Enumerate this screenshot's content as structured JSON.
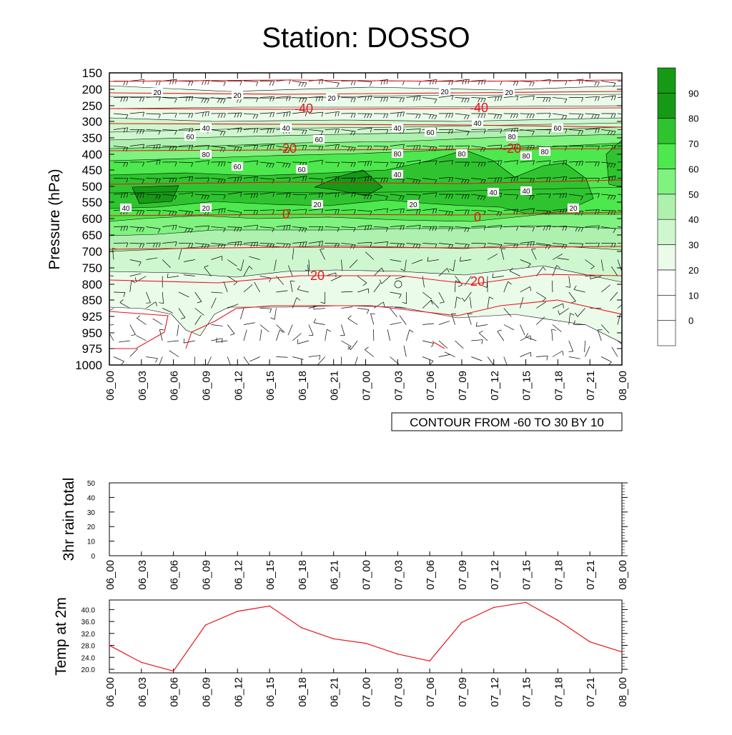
{
  "title": "Station: DOSSO",
  "time_labels": [
    "06_00",
    "06_03",
    "06_06",
    "06_09",
    "06_12",
    "06_15",
    "06_18",
    "06_21",
    "07_00",
    "07_03",
    "07_06",
    "07_09",
    "07_12",
    "07_15",
    "07_18",
    "07_21",
    "08_00"
  ],
  "colors": {
    "background": "#ffffff",
    "axis": "#000000",
    "temp_contour": "#e8141a",
    "temp_line": "#e8141a",
    "rh_levels": [
      "#ffffff",
      "#ffffff",
      "#eafbea",
      "#cff7cf",
      "#aef0ae",
      "#7ff27f",
      "#4de84d",
      "#2fc42f",
      "#169a16"
    ]
  },
  "chart_data": [
    {
      "type": "heatmap",
      "name": "meteogram-cross-section",
      "ylabel": "Pressure (hPa)",
      "xlabel": "",
      "y_ticks": [
        150,
        200,
        250,
        300,
        350,
        400,
        450,
        500,
        550,
        600,
        650,
        700,
        750,
        800,
        850,
        925,
        950,
        975,
        1000
      ],
      "x": [
        "06_00",
        "06_03",
        "06_06",
        "06_09",
        "06_12",
        "06_15",
        "06_18",
        "06_21",
        "07_00",
        "07_03",
        "07_06",
        "07_09",
        "07_12",
        "07_15",
        "07_18",
        "07_21",
        "08_00"
      ],
      "colorbar": {
        "labels": [
          0,
          10,
          20,
          30,
          40,
          50,
          60,
          70,
          80,
          90
        ]
      },
      "contour_info": "CONTOUR FROM -60 TO 30 BY 10",
      "temperature_contour_labels": [
        "-40",
        "-40",
        "-20",
        "-20",
        "0",
        "0",
        "20",
        "20"
      ],
      "humidity_contour_labels": [
        "20",
        "20",
        "20",
        "20",
        "20",
        "40",
        "40",
        "40",
        "40",
        "60",
        "60",
        "60",
        "60",
        "80",
        "80",
        "80",
        "80",
        "80",
        "80",
        "60",
        "60",
        "40",
        "40",
        "40",
        "40",
        "20",
        "20",
        "20",
        "20"
      ]
    },
    {
      "type": "bar",
      "name": "3hr-rain-total",
      "ylabel": "3hr rain total",
      "ylim": [
        0,
        50
      ],
      "y_ticks": [
        0,
        10,
        20,
        30,
        40,
        50
      ],
      "x": [
        "06_00",
        "06_03",
        "06_06",
        "06_09",
        "06_12",
        "06_15",
        "06_18",
        "06_21",
        "07_00",
        "07_03",
        "07_06",
        "07_09",
        "07_12",
        "07_15",
        "07_18",
        "07_21",
        "08_00"
      ],
      "values": [
        0,
        0,
        0,
        0,
        0,
        0,
        0,
        0,
        0,
        0,
        0,
        0,
        0,
        0,
        0,
        0,
        0
      ]
    },
    {
      "type": "line",
      "name": "temp-at-2m",
      "ylabel": "Temp at 2m",
      "ylim": [
        18.8,
        43.2
      ],
      "y_ticks": [
        "20.0",
        "24.0",
        "28.0",
        "32.0",
        "36.0",
        "40.0"
      ],
      "x": [
        "06_00",
        "06_03",
        "06_06",
        "06_09",
        "06_12",
        "06_15",
        "06_18",
        "06_21",
        "07_00",
        "07_03",
        "07_06",
        "07_09",
        "07_12",
        "07_15",
        "07_18",
        "07_21",
        "08_00"
      ],
      "values": [
        28.0,
        22.3,
        19.4,
        34.8,
        39.4,
        41.2,
        33.9,
        30.2,
        28.7,
        25.1,
        22.8,
        35.7,
        40.7,
        42.4,
        36.4,
        29.2,
        25.8
      ]
    }
  ]
}
